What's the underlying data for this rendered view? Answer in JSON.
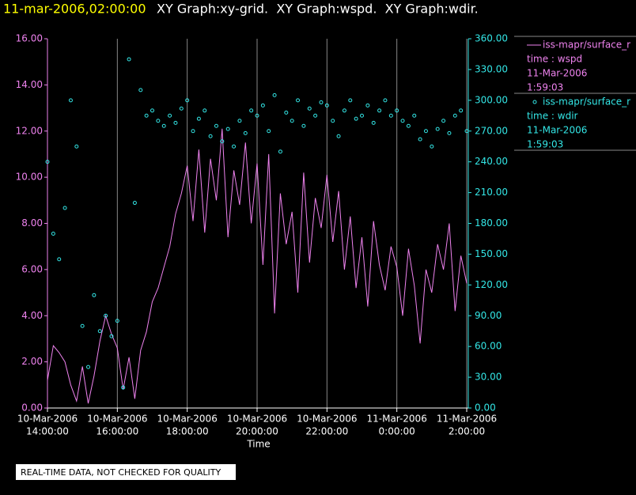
{
  "header": {
    "timestamp": "11-mar-2006,02:00:00",
    "titles": "XY Graph:xy-grid.  XY Graph:wspd.  XY Graph:wdir."
  },
  "notice": "REAL-TIME DATA, NOT CHECKED FOR QUALITY",
  "chart_data": {
    "type": "xy",
    "xlabel": "Time",
    "grid": true,
    "xlim": [
      "2006-03-10T14:00",
      "2006-03-11T02:00"
    ],
    "xticks": [
      {
        "value": "2006-03-10T14:00",
        "label": [
          "10-Mar-2006",
          "14:00:00"
        ]
      },
      {
        "value": "2006-03-10T16:00",
        "label": [
          "10-Mar-2006",
          "16:00:00"
        ]
      },
      {
        "value": "2006-03-10T18:00",
        "label": [
          "10-Mar-2006",
          "18:00:00"
        ]
      },
      {
        "value": "2006-03-10T20:00",
        "label": [
          "10-Mar-2006",
          "20:00:00"
        ]
      },
      {
        "value": "2006-03-10T22:00",
        "label": [
          "10-Mar-2006",
          "22:00:00"
        ]
      },
      {
        "value": "2006-03-11T00:00",
        "label": [
          "11-Mar-2006",
          "0:00:00"
        ]
      },
      {
        "value": "2006-03-11T02:00",
        "label": [
          "11-Mar-2006",
          "2:00:00"
        ]
      }
    ],
    "ylim": [
      0,
      16
    ],
    "yticks": [
      {
        "value": 0,
        "label": "0.00"
      },
      {
        "value": 2,
        "label": "2.00"
      },
      {
        "value": 4,
        "label": "4.00"
      },
      {
        "value": 6,
        "label": "6.00"
      },
      {
        "value": 8,
        "label": "8.00"
      },
      {
        "value": 10,
        "label": "10.00"
      },
      {
        "value": 12,
        "label": "12.00"
      },
      {
        "value": 14,
        "label": "14.00"
      },
      {
        "value": 16,
        "label": "16.00"
      }
    ],
    "y2lim": [
      0,
      360
    ],
    "y2ticks": [
      {
        "value": 0,
        "label": "0.00"
      },
      {
        "value": 30,
        "label": "30.00"
      },
      {
        "value": 60,
        "label": "60.00"
      },
      {
        "value": 90,
        "label": "90.00"
      },
      {
        "value": 120,
        "label": "120.00"
      },
      {
        "value": 150,
        "label": "150.00"
      },
      {
        "value": 180,
        "label": "180.00"
      },
      {
        "value": 210,
        "label": "210.00"
      },
      {
        "value": 240,
        "label": "240.00"
      },
      {
        "value": 270,
        "label": "270.00"
      },
      {
        "value": 300,
        "label": "300.00"
      },
      {
        "value": 330,
        "label": "330.00"
      },
      {
        "value": 360,
        "label": "360.00"
      }
    ],
    "x": [
      "2006-03-10T14:00",
      "2006-03-10T14:10",
      "2006-03-10T14:20",
      "2006-03-10T14:30",
      "2006-03-10T14:40",
      "2006-03-10T14:50",
      "2006-03-10T15:00",
      "2006-03-10T15:10",
      "2006-03-10T15:20",
      "2006-03-10T15:30",
      "2006-03-10T15:40",
      "2006-03-10T15:50",
      "2006-03-10T16:00",
      "2006-03-10T16:10",
      "2006-03-10T16:20",
      "2006-03-10T16:30",
      "2006-03-10T16:40",
      "2006-03-10T16:50",
      "2006-03-10T17:00",
      "2006-03-10T17:10",
      "2006-03-10T17:20",
      "2006-03-10T17:30",
      "2006-03-10T17:40",
      "2006-03-10T17:50",
      "2006-03-10T18:00",
      "2006-03-10T18:10",
      "2006-03-10T18:20",
      "2006-03-10T18:30",
      "2006-03-10T18:40",
      "2006-03-10T18:50",
      "2006-03-10T19:00",
      "2006-03-10T19:10",
      "2006-03-10T19:20",
      "2006-03-10T19:30",
      "2006-03-10T19:40",
      "2006-03-10T19:50",
      "2006-03-10T20:00",
      "2006-03-10T20:10",
      "2006-03-10T20:20",
      "2006-03-10T20:30",
      "2006-03-10T20:40",
      "2006-03-10T20:50",
      "2006-03-10T21:00",
      "2006-03-10T21:10",
      "2006-03-10T21:20",
      "2006-03-10T21:30",
      "2006-03-10T21:40",
      "2006-03-10T21:50",
      "2006-03-10T22:00",
      "2006-03-10T22:10",
      "2006-03-10T22:20",
      "2006-03-10T22:30",
      "2006-03-10T22:40",
      "2006-03-10T22:50",
      "2006-03-10T23:00",
      "2006-03-10T23:10",
      "2006-03-10T23:20",
      "2006-03-10T23:30",
      "2006-03-10T23:40",
      "2006-03-10T23:50",
      "2006-03-11T00:00",
      "2006-03-11T00:10",
      "2006-03-11T00:20",
      "2006-03-11T00:30",
      "2006-03-11T00:40",
      "2006-03-11T00:50",
      "2006-03-11T01:00",
      "2006-03-11T01:10",
      "2006-03-11T01:20",
      "2006-03-11T01:30",
      "2006-03-11T01:40",
      "2006-03-11T01:50",
      "2006-03-11T02:00"
    ],
    "series": [
      {
        "name": "iss-mapr/surface_r",
        "type": "line",
        "color": "#ee82ee",
        "legend_lines": [
          "time : wspd",
          "11-Mar-2006",
          "1:59:03"
        ],
        "values": [
          1.2,
          2.7,
          2.4,
          2.0,
          1.0,
          0.3,
          1.8,
          0.2,
          1.4,
          2.9,
          4.0,
          3.2,
          2.6,
          0.8,
          2.2,
          0.4,
          2.5,
          3.3,
          4.6,
          5.2,
          6.1,
          7.0,
          8.4,
          9.3,
          10.5,
          8.1,
          11.2,
          7.6,
          10.8,
          9.0,
          12.1,
          7.4,
          10.3,
          8.8,
          11.5,
          8.0,
          10.6,
          6.2,
          11.0,
          4.1,
          9.3,
          7.1,
          8.5,
          5.0,
          10.2,
          6.3,
          9.1,
          7.8,
          10.1,
          7.2,
          9.4,
          6.0,
          8.3,
          5.2,
          7.4,
          4.4,
          8.1,
          6.2,
          5.1,
          7.0,
          6.1,
          4.0,
          6.9,
          5.3,
          2.8,
          6.0,
          5.0,
          7.1,
          6.0,
          8.0,
          4.2,
          6.6,
          5.4
        ]
      },
      {
        "name": "iss-mapr/surface_r",
        "type": "scatter",
        "axis": "y2",
        "color": "#33e6e6",
        "legend_lines": [
          "time : wdir",
          "11-Mar-2006",
          "1:59:03"
        ],
        "values": [
          240,
          170,
          145,
          195,
          300,
          255,
          80,
          40,
          110,
          75,
          90,
          70,
          85,
          20,
          340,
          200,
          310,
          285,
          290,
          280,
          275,
          285,
          278,
          292,
          300,
          270,
          282,
          290,
          265,
          275,
          260,
          272,
          255,
          280,
          268,
          290,
          285,
          295,
          270,
          305,
          250,
          288,
          280,
          300,
          275,
          292,
          285,
          298,
          295,
          280,
          265,
          290,
          300,
          282,
          285,
          295,
          278,
          290,
          300,
          285,
          290,
          280,
          275,
          285,
          262,
          270,
          255,
          272,
          280,
          268,
          285,
          290,
          270
        ]
      }
    ]
  }
}
